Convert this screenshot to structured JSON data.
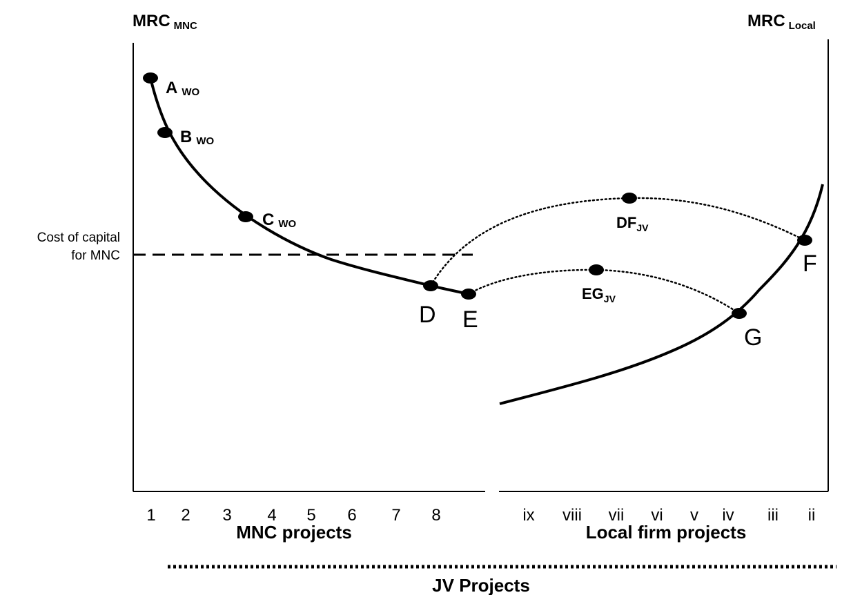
{
  "axes": {
    "left_title_main": "MRC",
    "left_title_sub": "MNC",
    "right_title_main": "MRC",
    "right_title_sub": "Local"
  },
  "cost_label": {
    "line1": "Cost of capital",
    "line2": "for MNC"
  },
  "points": {
    "a": {
      "main": "A",
      "sub": "WO"
    },
    "b": {
      "main": "B",
      "sub": "WO"
    },
    "c": {
      "main": "C",
      "sub": "WO"
    },
    "d": "D",
    "e": "E",
    "f": "F",
    "g": "G",
    "df": {
      "main": "DF",
      "sub": "JV"
    },
    "eg": {
      "main": "EG",
      "sub": "JV"
    }
  },
  "ticks": {
    "mnc": [
      "1",
      "2",
      "3",
      "4",
      "5",
      "6",
      "7",
      "8"
    ],
    "local": [
      "ix",
      "viii",
      "vii",
      "vi",
      "v",
      "iv",
      "iii",
      "ii"
    ]
  },
  "group_labels": {
    "mnc_projects": "MNC projects",
    "local_projects": "Local firm projects",
    "jv_projects": "JV Projects"
  }
}
